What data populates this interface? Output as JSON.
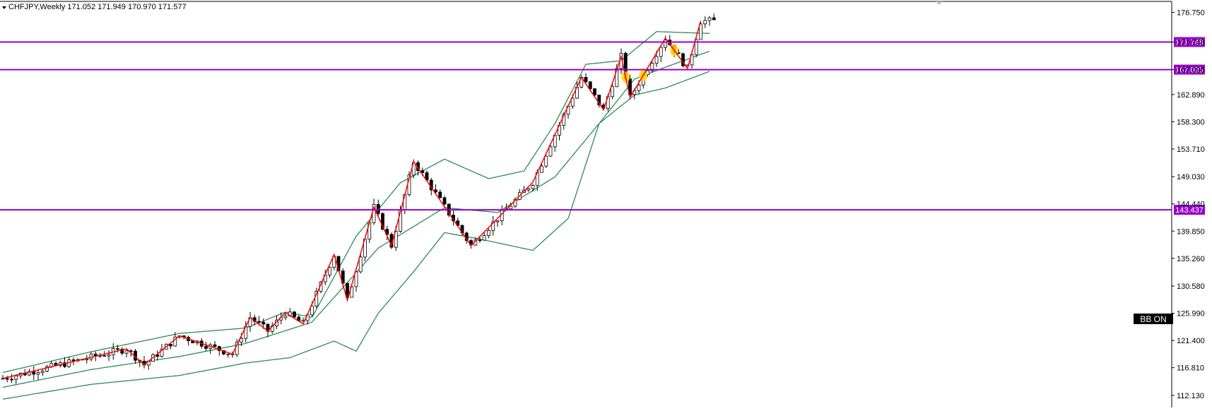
{
  "header": {
    "symbol_line": "CHFJPY,Weekly  171.052 171.949 170.970 171.577"
  },
  "badge": {
    "label": "BB ON"
  },
  "colors": {
    "background": "#ffffff",
    "level_line": "#9900cc",
    "bollinger": "#2e8b57",
    "zigzag": "#ff0000",
    "candle_up": "#ffffff",
    "candle_down": "#000000",
    "highlight": "#ffd700",
    "badge_bg": "#000000"
  },
  "chart_data": {
    "type": "candlestick",
    "title": "",
    "xlabel": "",
    "ylabel": "",
    "ylim": [
      110.1,
      178.6
    ],
    "grid": false,
    "y_ticks": [
      176.75,
      171.748,
      167.095,
      162.89,
      158.3,
      153.71,
      149.03,
      144.44,
      139.85,
      135.26,
      130.58,
      125.99,
      121.4,
      116.81,
      112.13
    ],
    "y_tick_labels": [
      "176.750",
      "171.748",
      "167.095",
      "162.890",
      "158.300",
      "153.710",
      "149.030",
      "144.440",
      "139.850",
      "135.260",
      "130.580",
      "125.990",
      "121.400",
      "116.810",
      "112.130"
    ],
    "horizontal_levels": [
      {
        "value": 171.748,
        "label": "171.748"
      },
      {
        "value": 167.095,
        "label": "167.095"
      },
      {
        "value": 143.437,
        "label": "143.437"
      }
    ],
    "indicators": [
      "Bollinger Bands",
      "ZigZag"
    ],
    "bars_visible": 210,
    "zigzag": [
      {
        "bar": 0,
        "price": 115.0
      },
      {
        "bar": 28,
        "price": 120.0
      },
      {
        "bar": 32,
        "price": 117.3
      },
      {
        "bar": 40,
        "price": 122.2
      },
      {
        "bar": 52,
        "price": 119.1
      },
      {
        "bar": 56,
        "price": 125.3
      },
      {
        "bar": 60,
        "price": 123.0
      },
      {
        "bar": 64,
        "price": 126.1
      },
      {
        "bar": 68,
        "price": 124.2
      },
      {
        "bar": 75,
        "price": 135.9
      },
      {
        "bar": 78,
        "price": 128.2
      },
      {
        "bar": 84,
        "price": 143.9
      },
      {
        "bar": 88,
        "price": 137.4
      },
      {
        "bar": 93,
        "price": 151.6
      },
      {
        "bar": 106,
        "price": 137.4
      },
      {
        "bar": 120,
        "price": 148.1
      },
      {
        "bar": 131,
        "price": 165.8
      },
      {
        "bar": 136,
        "price": 160.3
      },
      {
        "bar": 140,
        "price": 169.3
      },
      {
        "bar": 142,
        "price": 162.4
      },
      {
        "bar": 150,
        "price": 172.4
      },
      {
        "bar": 155,
        "price": 167.3
      },
      {
        "bar": 158,
        "price": 175.3
      }
    ],
    "bollinger_middle": [
      {
        "bar": 0,
        "price": 113.5
      },
      {
        "bar": 20,
        "price": 116.5
      },
      {
        "bar": 40,
        "price": 118.7
      },
      {
        "bar": 55,
        "price": 120.9
      },
      {
        "bar": 70,
        "price": 124.5
      },
      {
        "bar": 85,
        "price": 137.0
      },
      {
        "bar": 100,
        "price": 143.8
      },
      {
        "bar": 112,
        "price": 143.0
      },
      {
        "bar": 125,
        "price": 149.0
      },
      {
        "bar": 135,
        "price": 158.0
      },
      {
        "bar": 143,
        "price": 165.5
      },
      {
        "bar": 150,
        "price": 167.5
      },
      {
        "bar": 160,
        "price": 170.2
      }
    ],
    "bollinger_upper": [
      {
        "bar": 0,
        "price": 116.0
      },
      {
        "bar": 20,
        "price": 119.5
      },
      {
        "bar": 40,
        "price": 122.6
      },
      {
        "bar": 55,
        "price": 123.5
      },
      {
        "bar": 64,
        "price": 126.2
      },
      {
        "bar": 70,
        "price": 125.3
      },
      {
        "bar": 80,
        "price": 139.0
      },
      {
        "bar": 90,
        "price": 148.0
      },
      {
        "bar": 100,
        "price": 152.0
      },
      {
        "bar": 110,
        "price": 148.7
      },
      {
        "bar": 118,
        "price": 150.0
      },
      {
        "bar": 125,
        "price": 158.0
      },
      {
        "bar": 132,
        "price": 168.0
      },
      {
        "bar": 140,
        "price": 168.6
      },
      {
        "bar": 148,
        "price": 173.5
      },
      {
        "bar": 160,
        "price": 173.2
      }
    ],
    "bollinger_lower": [
      {
        "bar": 0,
        "price": 111.5
      },
      {
        "bar": 20,
        "price": 114.0
      },
      {
        "bar": 40,
        "price": 115.5
      },
      {
        "bar": 55,
        "price": 117.6
      },
      {
        "bar": 65,
        "price": 118.5
      },
      {
        "bar": 75,
        "price": 121.3
      },
      {
        "bar": 80,
        "price": 119.6
      },
      {
        "bar": 85,
        "price": 126.0
      },
      {
        "bar": 93,
        "price": 133.0
      },
      {
        "bar": 100,
        "price": 139.6
      },
      {
        "bar": 108,
        "price": 138.5
      },
      {
        "bar": 120,
        "price": 136.6
      },
      {
        "bar": 128,
        "price": 142.0
      },
      {
        "bar": 135,
        "price": 158.0
      },
      {
        "bar": 143,
        "price": 162.8
      },
      {
        "bar": 150,
        "price": 164.0
      },
      {
        "bar": 160,
        "price": 166.8
      }
    ],
    "highlighted_bars": [
      141,
      145,
      152
    ]
  }
}
